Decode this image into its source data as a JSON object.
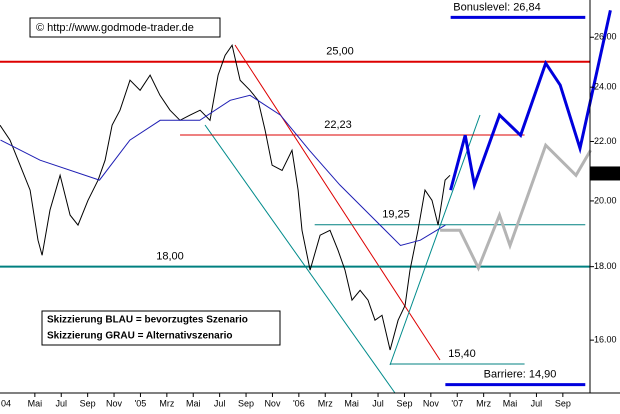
{
  "chart_data": {
    "type": "line",
    "source": "© http://www.godmode-trader.de",
    "notes": [
      "Skizzierung BLAU = bevorzugtes Szenario",
      "Skizzierung GRAU = Alternativszenario"
    ],
    "log_scale": true,
    "xlim": [
      1.36,
      48.33
    ],
    "ylim": [
      14.7,
      27.6
    ],
    "yticks": [
      {
        "value": 16,
        "label": "16.00"
      },
      {
        "value": 18,
        "label": "18.00"
      },
      {
        "value": 20,
        "label": "20.00"
      },
      {
        "value": 22,
        "label": "22.00"
      },
      {
        "value": 24,
        "label": "24.00"
      },
      {
        "value": 26,
        "label": "26.00"
      }
    ],
    "xticks": [
      {
        "value": 0,
        "label": "04"
      },
      {
        "value": 4,
        "label": "Mai"
      },
      {
        "value": 6,
        "label": "Jul"
      },
      {
        "value": 8,
        "label": "Sep"
      },
      {
        "value": 10,
        "label": "Nov"
      },
      {
        "value": 12,
        "label": "'05"
      },
      {
        "value": 14,
        "label": "Mrz"
      },
      {
        "value": 16,
        "label": "Mai"
      },
      {
        "value": 18,
        "label": "Jul"
      },
      {
        "value": 20,
        "label": "Sep"
      },
      {
        "value": 22,
        "label": "Nov"
      },
      {
        "value": 24,
        "label": "'06"
      },
      {
        "value": 26,
        "label": "Mrz"
      },
      {
        "value": 28,
        "label": "Mai"
      },
      {
        "value": 30,
        "label": "Jul"
      },
      {
        "value": 32,
        "label": "Sep"
      },
      {
        "value": 34,
        "label": "Nov"
      },
      {
        "value": 36,
        "label": "'07"
      },
      {
        "value": 38,
        "label": "Mrz"
      },
      {
        "value": 40,
        "label": "Mai"
      },
      {
        "value": 42,
        "label": "Jul"
      },
      {
        "value": 44,
        "label": "Sep"
      }
    ],
    "last_price": {
      "value": 20.9,
      "label": "20.90"
    },
    "series": [
      {
        "color": "#000000",
        "x": [
          1.36,
          2.12,
          2.88,
          3.64,
          4.24,
          4.55,
          5.15,
          5.91,
          6.67,
          7.27,
          8.03,
          8.79,
          9.32,
          9.85,
          10.45,
          11.21,
          11.97,
          12.73,
          13.48,
          14.24,
          15.0,
          15.76,
          16.52,
          17.27,
          17.88,
          18.41,
          18.94,
          19.55,
          20.3,
          20.91,
          21.44,
          21.97,
          22.73,
          23.48,
          23.94,
          24.24,
          24.85,
          25.61,
          26.36,
          26.97,
          27.5,
          28.03,
          28.64,
          29.24,
          29.77,
          30.3,
          30.91,
          31.52,
          32.05,
          32.42,
          33.03,
          33.56,
          34.09,
          34.55,
          35.08,
          35.45
        ],
        "values": [
          22.58,
          22.05,
          21.18,
          20.35,
          18.78,
          18.33,
          19.71,
          20.84,
          19.55,
          19.24,
          20.02,
          20.68,
          21.35,
          22.58,
          23.13,
          24.27,
          23.88,
          24.47,
          23.69,
          23.13,
          22.76,
          22.95,
          23.13,
          22.76,
          24.47,
          25.26,
          25.67,
          24.27,
          23.88,
          23.5,
          22.4,
          21.18,
          21.0,
          21.69,
          20.35,
          19.08,
          17.9,
          18.93,
          19.08,
          18.48,
          17.9,
          17.06,
          17.33,
          17.06,
          16.52,
          16.65,
          15.75,
          16.52,
          16.92,
          17.9,
          19.08,
          20.35,
          20.02,
          19.24,
          20.68,
          20.84
        ]
      },
      {
        "color": "#1f1fb4",
        "x": [
          1.4,
          4.4,
          8.9,
          11.2,
          13.5,
          16.5,
          18.8,
          20.3,
          22.6,
          24.8,
          27.1,
          29.4,
          31.7,
          33.2,
          35.1
        ],
        "values": [
          22.05,
          21.35,
          20.68,
          22.05,
          22.76,
          22.76,
          23.5,
          23.69,
          22.95,
          21.69,
          20.52,
          19.55,
          18.62,
          18.78,
          19.24
        ]
      },
      {
        "color": "#0000dd",
        "x": [
          35.5,
          36.6,
          37.3,
          39.2,
          40.8,
          42.7,
          43.8,
          45.3,
          47.6
        ],
        "values": [
          20.35,
          22.22,
          20.52,
          22.95,
          22.22,
          24.94,
          24.08,
          21.76,
          27.15
        ]
      },
      {
        "color": "#b4b4b4",
        "x": [
          34.7,
          36.2,
          37.6,
          39.2,
          40.0,
          42.7,
          45.0,
          46.1
        ],
        "values": [
          19.08,
          19.08,
          17.96,
          19.55,
          18.62,
          21.87,
          20.84,
          21.69
        ]
      }
    ],
    "levels": [
      {
        "value": 25,
        "label": "25,00",
        "color": "#dd0000",
        "x": [
          1.36,
          48.33
        ]
      },
      {
        "value": 22.23,
        "label": "22,23",
        "color": "#dd0000",
        "x": [
          15.0,
          41.1
        ]
      },
      {
        "value": 19.25,
        "label": "19,25",
        "color": "#008080",
        "x": [
          25.2,
          45.7
        ]
      },
      {
        "value": 18,
        "label": "18,00",
        "color": "#008080",
        "x": [
          1.36,
          48.33
        ]
      },
      {
        "value": 15.4,
        "label": "15,40",
        "color": "#008080",
        "x": [
          30.9,
          41.1
        ]
      },
      {
        "value": 26.84,
        "label": "Bonuslevel: 26,84",
        "color": "#0000dd",
        "x": [
          35.5,
          45.7
        ]
      },
      {
        "value": 14.9,
        "label": "Barriere: 14,90",
        "color": "#0000dd",
        "x": [
          35.1,
          45.7
        ]
      }
    ]
  }
}
